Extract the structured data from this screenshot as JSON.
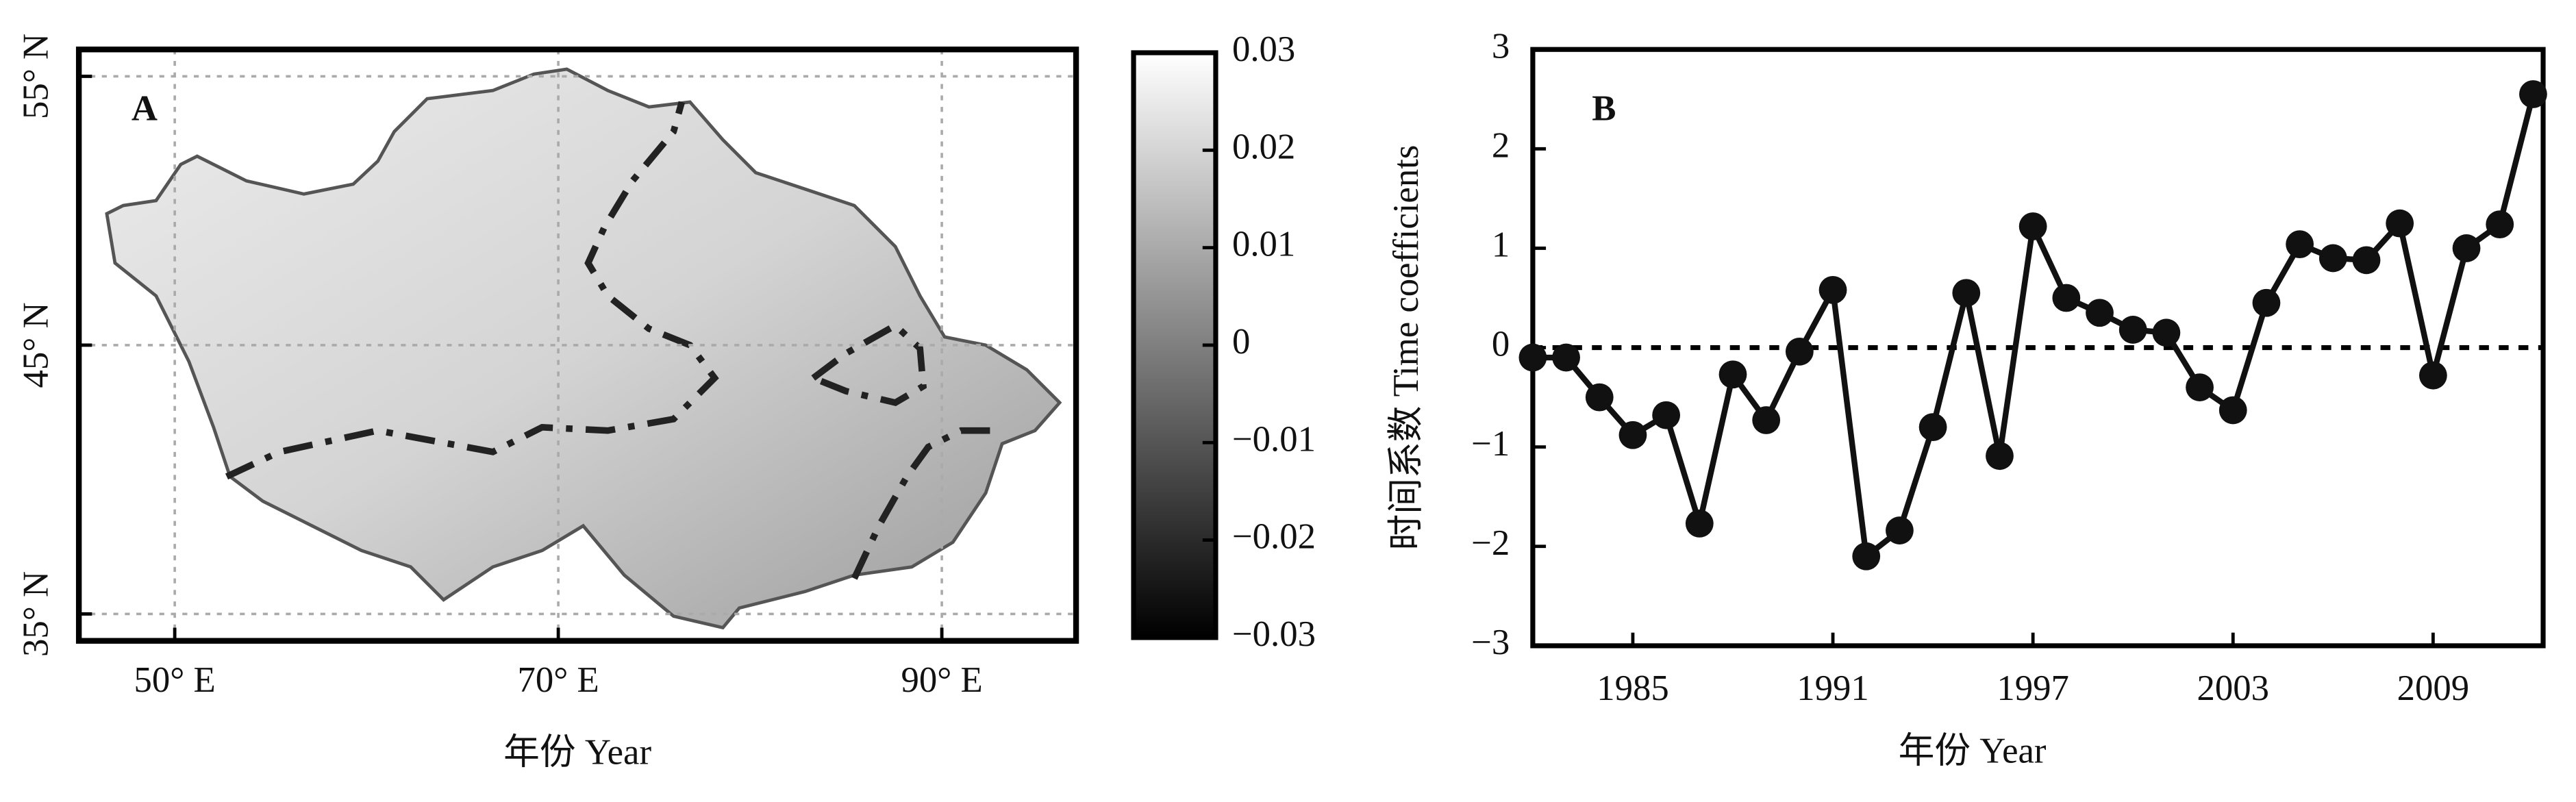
{
  "chart_data": [
    {
      "type": "map",
      "label": "A",
      "xlabel": "年份 Year",
      "xlim": [
        45,
        97
      ],
      "ylim": [
        34,
        56
      ],
      "xticks": [
        {
          "value": 50,
          "label": "50° E"
        },
        {
          "value": 70,
          "label": "70° E"
        },
        {
          "value": 90,
          "label": "90° E"
        }
      ],
      "yticks": [
        {
          "value": 35,
          "label": "35° N"
        },
        {
          "value": 45,
          "label": "45° N"
        },
        {
          "value": 55,
          "label": "55° N"
        }
      ],
      "grid": true,
      "clim": [
        -0.03,
        0.03
      ],
      "cticks": [
        {
          "value": -0.03,
          "label": "−0.03"
        },
        {
          "value": -0.02,
          "label": "−0.02"
        },
        {
          "value": -0.01,
          "label": "−0.01"
        },
        0,
        0.01,
        0.02,
        0.03
      ]
    },
    {
      "type": "line",
      "label": "B",
      "xlabel": "年份 Year",
      "ylabel": "时间系数 Time coefficients",
      "x": [
        1982,
        1983,
        1984,
        1985,
        1986,
        1987,
        1988,
        1989,
        1990,
        1991,
        1992,
        1993,
        1994,
        1995,
        1996,
        1997,
        1998,
        1999,
        2000,
        2001,
        2002,
        2003,
        2004,
        2005,
        2006,
        2007,
        2008,
        2009,
        2010,
        2011,
        2012
      ],
      "values": [
        -0.1,
        -0.1,
        -0.5,
        -0.88,
        -0.68,
        -1.77,
        -0.27,
        -0.73,
        -0.04,
        0.58,
        -2.1,
        -1.84,
        -0.8,
        0.55,
        -1.09,
        1.22,
        0.5,
        0.35,
        0.18,
        0.15,
        -0.4,
        -0.63,
        0.45,
        1.04,
        0.9,
        0.88,
        1.25,
        -0.28,
        1.0,
        1.24,
        2.55
      ],
      "color": "#111111",
      "xlim": [
        1982,
        2012.3
      ],
      "ylim": [
        -3,
        3
      ],
      "xticks": [
        1985,
        1991,
        1997,
        2003,
        2009
      ],
      "yticks": [
        {
          "value": -3,
          "label": "−3"
        },
        {
          "value": -2,
          "label": "−2"
        },
        {
          "value": -1,
          "label": "−1"
        },
        0,
        1,
        2,
        3
      ],
      "reference_line": 0
    }
  ]
}
